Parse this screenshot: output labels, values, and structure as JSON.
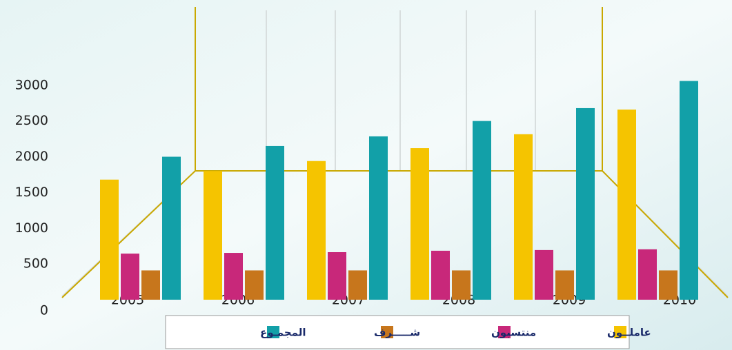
{
  "chart_data": {
    "type": "bar",
    "categories": [
      "2005",
      "2006",
      "2007",
      "2008",
      "2009",
      "2010"
    ],
    "series": [
      {
        "name": "عاملــون",
        "color": "#f5c400",
        "values": [
          1680,
          1800,
          1940,
          2120,
          2315,
          2660
        ]
      },
      {
        "name": "منتسبون",
        "color": "#c8287a",
        "values": [
          645,
          655,
          665,
          685,
          695,
          705
        ]
      },
      {
        "name": "شـــــرف",
        "color": "#c7761c",
        "values": [
          410,
          410,
          410,
          410,
          410,
          410
        ]
      },
      {
        "name": "المجمـوع",
        "color": "#12a0a8",
        "values": [
          2000,
          2150,
          2285,
          2500,
          2680,
          3060
        ]
      }
    ],
    "ylim": [
      0,
      3200
    ],
    "yticks": [
      0,
      500,
      1000,
      1500,
      2000,
      2500,
      3000
    ]
  }
}
